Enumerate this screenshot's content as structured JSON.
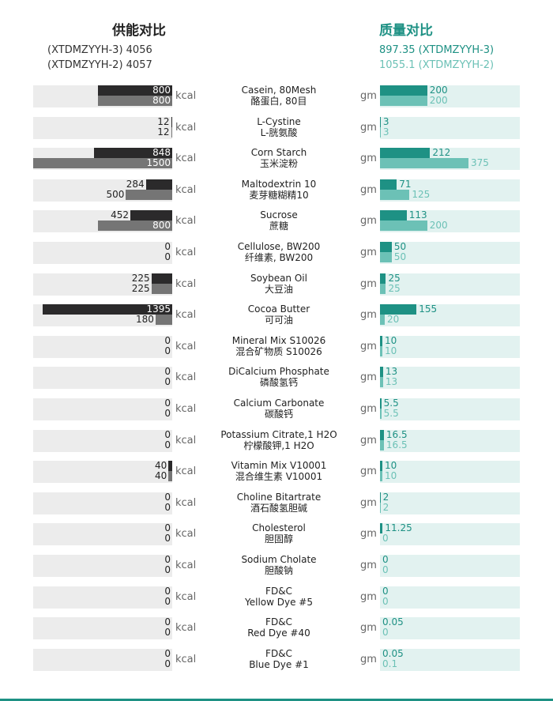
{
  "header": {
    "energy_title": "供能对比",
    "energy_line1": "(XTDMZYYH-3) 4056",
    "energy_line2": "(XTDMZYYH-2) 4057",
    "mass_title": "质量对比",
    "mass_line1": "897.35 (XTDMZYYH-3)",
    "mass_line2": "1055.1 (XTDMZYYH-2)"
  },
  "units": {
    "energy": "kcal",
    "mass": "gm"
  },
  "colors": {
    "energy_a": "#2b2a2b",
    "energy_b": "#757575",
    "mass_a": "#1e9184",
    "mass_b": "#6cc1b6"
  },
  "chart_data": {
    "type": "bar",
    "energy_axis_max": 1500,
    "mass_axis_max": 375,
    "rows": [
      {
        "name_en": "Casein, 80Mesh",
        "name_cn": "酪蛋白, 80目",
        "energy_a": 800,
        "energy_b": 800,
        "mass_a": "200",
        "mass_b": "200"
      },
      {
        "name_en": "L-Cystine",
        "name_cn": "L-胱氨酸",
        "energy_a": 12,
        "energy_b": 12,
        "mass_a": "3",
        "mass_b": "3"
      },
      {
        "name_en": "Corn Starch",
        "name_cn": "玉米淀粉",
        "energy_a": 848,
        "energy_b": 1500,
        "mass_a": "212",
        "mass_b": "375"
      },
      {
        "name_en": "Maltodextrin 10",
        "name_cn": "麦芽糖糊精10",
        "energy_a": 284,
        "energy_b": 500,
        "mass_a": "71",
        "mass_b": "125"
      },
      {
        "name_en": "Sucrose",
        "name_cn": "蔗糖",
        "energy_a": 452,
        "energy_b": 800,
        "mass_a": "113",
        "mass_b": "200"
      },
      {
        "name_en": "Cellulose, BW200",
        "name_cn": "纤维素, BW200",
        "energy_a": 0,
        "energy_b": 0,
        "mass_a": "50",
        "mass_b": "50"
      },
      {
        "name_en": "Soybean Oil",
        "name_cn": "大豆油",
        "energy_a": 225,
        "energy_b": 225,
        "mass_a": "25",
        "mass_b": "25"
      },
      {
        "name_en": "Cocoa Butter",
        "name_cn": "可可油",
        "energy_a": 1395,
        "energy_b": 180,
        "mass_a": "155",
        "mass_b": "20"
      },
      {
        "name_en": "Mineral Mix S10026",
        "name_cn": "混合矿物质 S10026",
        "energy_a": 0,
        "energy_b": 0,
        "mass_a": "10",
        "mass_b": "10"
      },
      {
        "name_en": "DiCalcium Phosphate",
        "name_cn": "磷酸氢钙",
        "energy_a": 0,
        "energy_b": 0,
        "mass_a": "13",
        "mass_b": "13"
      },
      {
        "name_en": "Calcium Carbonate",
        "name_cn": "碳酸钙",
        "energy_a": 0,
        "energy_b": 0,
        "mass_a": "5.5",
        "mass_b": "5.5"
      },
      {
        "name_en": "Potassium Citrate,1 H2O",
        "name_cn": "柠檬酸钾,1 H2O",
        "energy_a": 0,
        "energy_b": 0,
        "mass_a": "16.5",
        "mass_b": "16.5"
      },
      {
        "name_en": "Vitamin Mix V10001",
        "name_cn": "混合维生素 V10001",
        "energy_a": 40,
        "energy_b": 40,
        "mass_a": "10",
        "mass_b": "10"
      },
      {
        "name_en": "Choline Bitartrate",
        "name_cn": "酒石酸氢胆碱",
        "energy_a": 0,
        "energy_b": 0,
        "mass_a": "2",
        "mass_b": "2"
      },
      {
        "name_en": "Cholesterol",
        "name_cn": "胆固醇",
        "energy_a": 0,
        "energy_b": 0,
        "mass_a": "11.25",
        "mass_b": "0"
      },
      {
        "name_en": "Sodium Cholate",
        "name_cn": "胆酸钠",
        "energy_a": 0,
        "energy_b": 0,
        "mass_a": "0",
        "mass_b": "0"
      },
      {
        "name_en": "FD&C",
        "name_cn": "Yellow Dye #5",
        "energy_a": 0,
        "energy_b": 0,
        "mass_a": "0",
        "mass_b": "0"
      },
      {
        "name_en": "FD&C",
        "name_cn": "Red Dye #40",
        "energy_a": 0,
        "energy_b": 0,
        "mass_a": "0.05",
        "mass_b": "0"
      },
      {
        "name_en": "FD&C",
        "name_cn": "Blue Dye #1",
        "energy_a": 0,
        "energy_b": 0,
        "mass_a": "0.05",
        "mass_b": "0.1"
      }
    ]
  }
}
